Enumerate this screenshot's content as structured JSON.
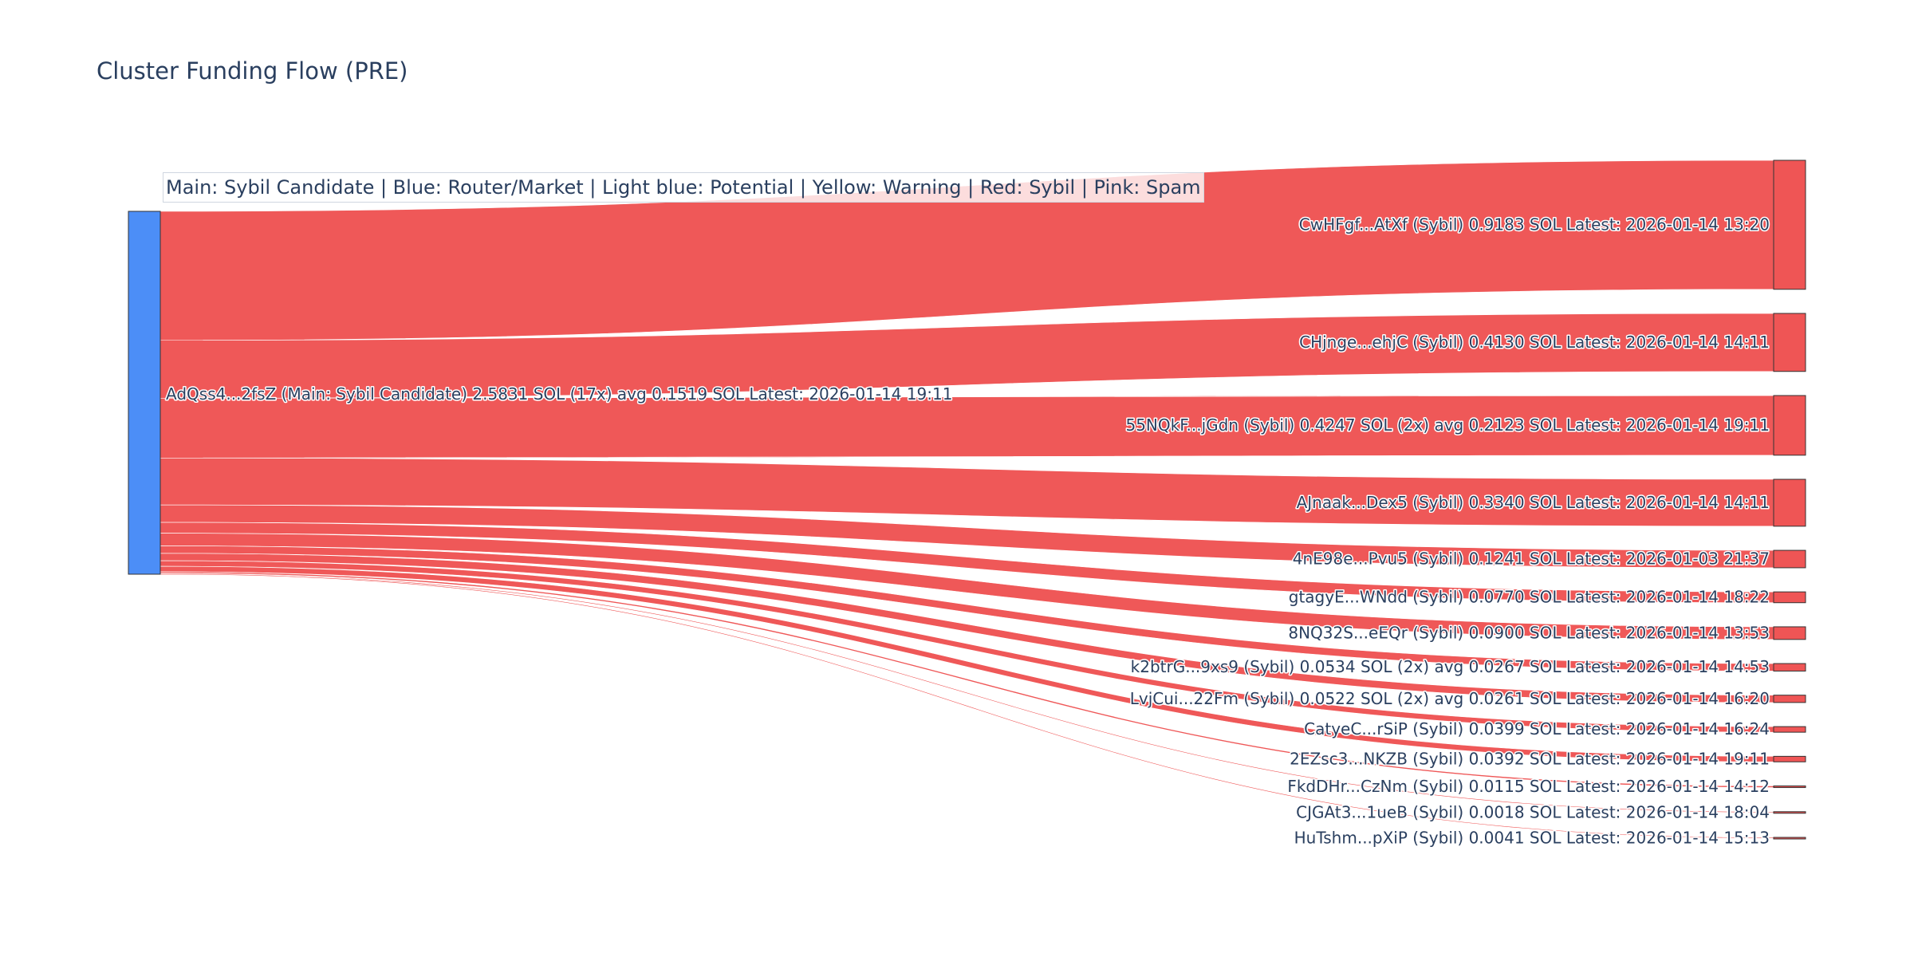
{
  "chart_data": {
    "type": "sankey",
    "title": "Cluster Funding Flow (PRE)",
    "annotation": "Main: Sybil Candidate  |  Blue: Router/Market | Light blue: Potential | Yellow: Warning | Red: Sybil | Pink: Spam",
    "colors": {
      "main": "#4c8ef7",
      "sybil": "#ef5555",
      "link": "#ef5555",
      "label": "#2a3f5f"
    },
    "source": {
      "label": "AdQss4...2fsZ (Main: Sybil Candidate) 2.5831 SOL (17x) avg 0.1519 SOL Latest: 2026-01-14 19:11",
      "value": 2.5831,
      "category": "main"
    },
    "targets": [
      {
        "label": "CwHFgf...AtXf (Sybil) 0.9183 SOL Latest: 2026-01-14 13:20",
        "value": 0.9183,
        "category": "sybil"
      },
      {
        "label": "CHjnge...ehjC (Sybil) 0.4130 SOL Latest: 2026-01-14 14:11",
        "value": 0.413,
        "category": "sybil"
      },
      {
        "label": "55NQkF...jGdn (Sybil) 0.4247 SOL (2x) avg 0.2123 SOL Latest: 2026-01-14 19:11",
        "value": 0.4247,
        "category": "sybil"
      },
      {
        "label": "AJnaak...Dex5 (Sybil) 0.3340 SOL Latest: 2026-01-14 14:11",
        "value": 0.334,
        "category": "sybil"
      },
      {
        "label": "4nE98e...Pvu5 (Sybil) 0.1241 SOL Latest: 2026-01-03 21:37",
        "value": 0.1241,
        "category": "sybil"
      },
      {
        "label": "gtagyE...WNdd (Sybil) 0.0770 SOL Latest: 2026-01-14 18:22",
        "value": 0.077,
        "category": "sybil"
      },
      {
        "label": "8NQ32S...eEQr (Sybil) 0.0900 SOL Latest: 2026-01-14 13:53",
        "value": 0.09,
        "category": "sybil"
      },
      {
        "label": "k2btrG...9xs9 (Sybil) 0.0534 SOL (2x) avg 0.0267 SOL Latest: 2026-01-14 14:53",
        "value": 0.0534,
        "category": "sybil"
      },
      {
        "label": "LvjCui...22Fm (Sybil) 0.0522 SOL (2x) avg 0.0261 SOL Latest: 2026-01-14 16:20",
        "value": 0.0522,
        "category": "sybil"
      },
      {
        "label": "CatyeC...rSiP (Sybil) 0.0399 SOL Latest: 2026-01-14 16:24",
        "value": 0.0399,
        "category": "sybil"
      },
      {
        "label": "2EZsc3...NKZB (Sybil) 0.0392 SOL Latest: 2026-01-14 19:11",
        "value": 0.0392,
        "category": "sybil"
      },
      {
        "label": "FkdDHr...CzNm (Sybil) 0.0115 SOL Latest: 2026-01-14 14:12",
        "value": 0.0115,
        "category": "sybil"
      },
      {
        "label": "CJGAt3...1ueB (Sybil) 0.0018 SOL Latest: 2026-01-14 18:04",
        "value": 0.0018,
        "category": "sybil"
      },
      {
        "label": "HuTshm...pXiP (Sybil) 0.0041 SOL Latest: 2026-01-14 15:13",
        "value": 0.0041,
        "category": "sybil"
      }
    ]
  }
}
